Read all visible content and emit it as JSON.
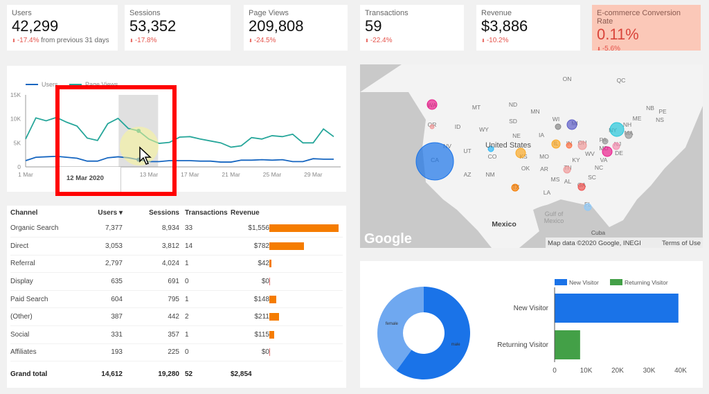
{
  "kpis": [
    {
      "label": "Users",
      "value": "42,299",
      "change": "-17.4%",
      "extra": "from previous 31 days"
    },
    {
      "label": "Sessions",
      "value": "53,352",
      "change": "-17.8%",
      "extra": ""
    },
    {
      "label": "Page Views",
      "value": "209,808",
      "change": "-24.5%",
      "extra": ""
    },
    {
      "label": "Transactions",
      "value": "59",
      "change": "-22.4%",
      "extra": ""
    },
    {
      "label": "Revenue",
      "value": "$3,886",
      "change": "-10.2%",
      "extra": ""
    },
    {
      "label": "E-commerce Conversion Rate",
      "value": "0.11%",
      "change": "-5.6%",
      "extra": "",
      "highlight": true
    }
  ],
  "chart_data": [
    {
      "type": "line",
      "legend": [
        "Users",
        "Page Views"
      ],
      "legend_placement": "top-left",
      "x_ticks": [
        "1 Mar",
        "13 Mar",
        "17 Mar",
        "21 Mar",
        "25 Mar",
        "29 Mar"
      ],
      "y_ticks": [
        "0",
        "5K",
        "10K",
        "15K"
      ],
      "ylim": [
        0,
        15000
      ],
      "series": [
        {
          "name": "Users",
          "color": "#1565c0",
          "values": [
            1300,
            2000,
            2100,
            2200,
            2000,
            1800,
            1200,
            1200,
            1900,
            2100,
            1900,
            1500,
            1100,
            1100,
            1300,
            1300,
            1300,
            1200,
            1200,
            1000,
            1000,
            1400,
            1400,
            1500,
            1400,
            1500,
            1100,
            1100,
            1700,
            1600,
            1600
          ]
        },
        {
          "name": "Page Views",
          "color": "#26a69a",
          "values": [
            5800,
            10200,
            9600,
            10300,
            9300,
            8500,
            6000,
            5500,
            9000,
            10100,
            8000,
            7500,
            5800,
            4900,
            5100,
            6200,
            6300,
            5800,
            5400,
            5000,
            4100,
            4400,
            6100,
            5800,
            6500,
            6300,
            6800,
            5000,
            5000,
            7900,
            6300
          ]
        }
      ],
      "tooltip": "12 Mar 2020"
    },
    {
      "type": "pie",
      "donut": true,
      "slices": [
        {
          "label": "male",
          "value": 60,
          "color": "#1a73e8"
        },
        {
          "label": "female",
          "value": 40,
          "color": "#6fa8f0"
        }
      ]
    },
    {
      "type": "bar",
      "orientation": "horizontal",
      "categories": [
        "New Visitor",
        "Returning Visitor"
      ],
      "series": [
        {
          "name": "New Visitor",
          "color": "#1a73e8",
          "values": [
            39300,
            null
          ]
        },
        {
          "name": "Returning Visitor",
          "color": "#43a047",
          "values": [
            null,
            8100
          ]
        }
      ],
      "x_ticks": [
        "0",
        "10K",
        "20K",
        "30K",
        "40K"
      ],
      "xlim": [
        0,
        40000
      ],
      "legend_placement": "top"
    }
  ],
  "table": {
    "headers": [
      "Channel",
      "Users",
      "Sessions",
      "Transactions",
      "Revenue"
    ],
    "sort_icon": "sort-down-icon",
    "rows": [
      [
        "Organic Search",
        "7,377",
        "8,934",
        "33",
        "$1,556",
        1556
      ],
      [
        "Direct",
        "3,053",
        "3,812",
        "14",
        "$782",
        782
      ],
      [
        "Referral",
        "2,797",
        "4,024",
        "1",
        "$42",
        42
      ],
      [
        "Display",
        "635",
        "691",
        "0",
        "$0",
        0
      ],
      [
        "Paid Search",
        "604",
        "795",
        "1",
        "$148",
        148
      ],
      [
        "(Other)",
        "387",
        "442",
        "2",
        "$211",
        211
      ],
      [
        "Social",
        "331",
        "357",
        "1",
        "$115",
        115
      ],
      [
        "Affiliates",
        "193",
        "225",
        "0",
        "$0",
        0
      ]
    ],
    "total": [
      "Grand total",
      "14,612",
      "19,280",
      "52",
      "$2,854"
    ]
  },
  "map": {
    "labels": [
      "MT",
      "ND",
      "MN",
      "WA",
      "OR",
      "ID",
      "WY",
      "SD",
      "WI",
      "MI",
      "NY",
      "NH",
      "ME",
      "MA",
      "NE",
      "IA",
      "UT",
      "CO",
      "KS",
      "NV",
      "CA",
      "IL",
      "IN",
      "OH",
      "PA",
      "MD",
      "DE",
      "NJ",
      "MO",
      "KY",
      "WV",
      "VA",
      "AZ",
      "NM",
      "OK",
      "AR",
      "TN",
      "NC",
      "SC",
      "MS",
      "AL",
      "GA",
      "TX",
      "LA",
      "FL",
      "ON",
      "QC",
      "NB",
      "PE",
      "NS"
    ],
    "country_us": "United States",
    "country_mx": "Mexico",
    "gulf": "Gulf of Mexico",
    "cuba": "Cuba",
    "logo": "Google",
    "attribution": "Map data ©2020 Google, INEGI",
    "terms": "Terms of Use"
  }
}
